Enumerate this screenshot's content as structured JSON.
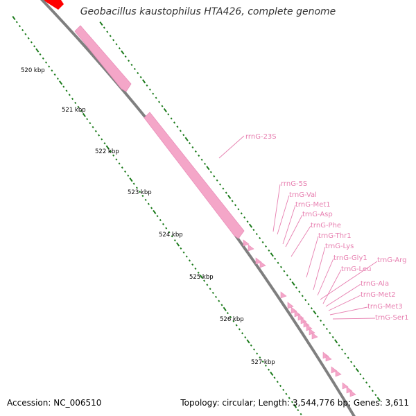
{
  "title": "Geobacillus kaustophilus HTA426, complete genome",
  "accession_text": "Accession: NC_006510",
  "summary_text": "Topology: circular; Length: 3,544,776 bp; Genes: 3,611",
  "colors": {
    "backbone": "#7f7f7f",
    "ticks": "#1a7a1a",
    "rna_feature": "#f4a6c8",
    "rna_label": "#e77fb0",
    "cds_feature": "#ff0000",
    "tick_label": "#000000"
  },
  "scale_labels": [
    "520 kbp",
    "521 kbp",
    "522 kbp",
    "523 kbp",
    "524 kbp",
    "525 kbp",
    "526 kbp",
    "527 kbp"
  ],
  "feature_labels": [
    "rrnG-23S",
    "rrnG-5S",
    "trnG-Val",
    "trnG-Met1",
    "trnG-Asp",
    "trnG-Phe",
    "trnG-Thr1",
    "trnG-Lys",
    "trnG-Gly1",
    "trnG-Arg",
    "trnG-Leu",
    "trnG-Ala",
    "trnG-Met2",
    "trnG-Met3",
    "trnG-Ser1"
  ]
}
